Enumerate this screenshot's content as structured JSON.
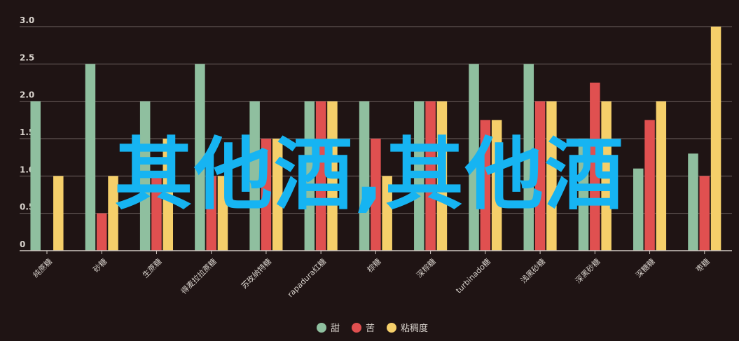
{
  "chart_data": {
    "type": "bar",
    "categories": [
      "纯蔗糖",
      "砂糖",
      "生蔗糖",
      "得麦拉拉蔗糖",
      "苏玫纳特糖",
      "rapadura红糖",
      "棕糖",
      "深棕糖",
      "turbinado糖",
      "浅黑砂糖",
      "深黑砂糖",
      "深糖糖",
      "枣糖"
    ],
    "series": [
      {
        "name": "甜",
        "color": "#8fbf9f",
        "values": [
          2,
          2.5,
          2,
          2.5,
          2,
          2,
          2,
          2,
          2.5,
          2.5,
          1.5,
          1.1,
          1.3
        ]
      },
      {
        "name": "苦",
        "color": "#e05050",
        "values": [
          0,
          0.5,
          1,
          1,
          1.5,
          2,
          1.5,
          2,
          1.75,
          2,
          2.25,
          1.75,
          1
        ]
      },
      {
        "name": "粘稠度",
        "color": "#f5cf6a",
        "values": [
          1,
          1,
          1.5,
          1,
          1.5,
          2,
          1,
          2,
          1.75,
          2,
          2,
          2,
          3
        ]
      }
    ],
    "yticks": [
      "0",
      "0.5",
      "1.0",
      "1.5",
      "2.0",
      "2.5",
      "3.0"
    ],
    "ylim": [
      0,
      3
    ],
    "grid": true,
    "legend": "bottom-center"
  },
  "overlay_text": "其他酒,其他酒"
}
